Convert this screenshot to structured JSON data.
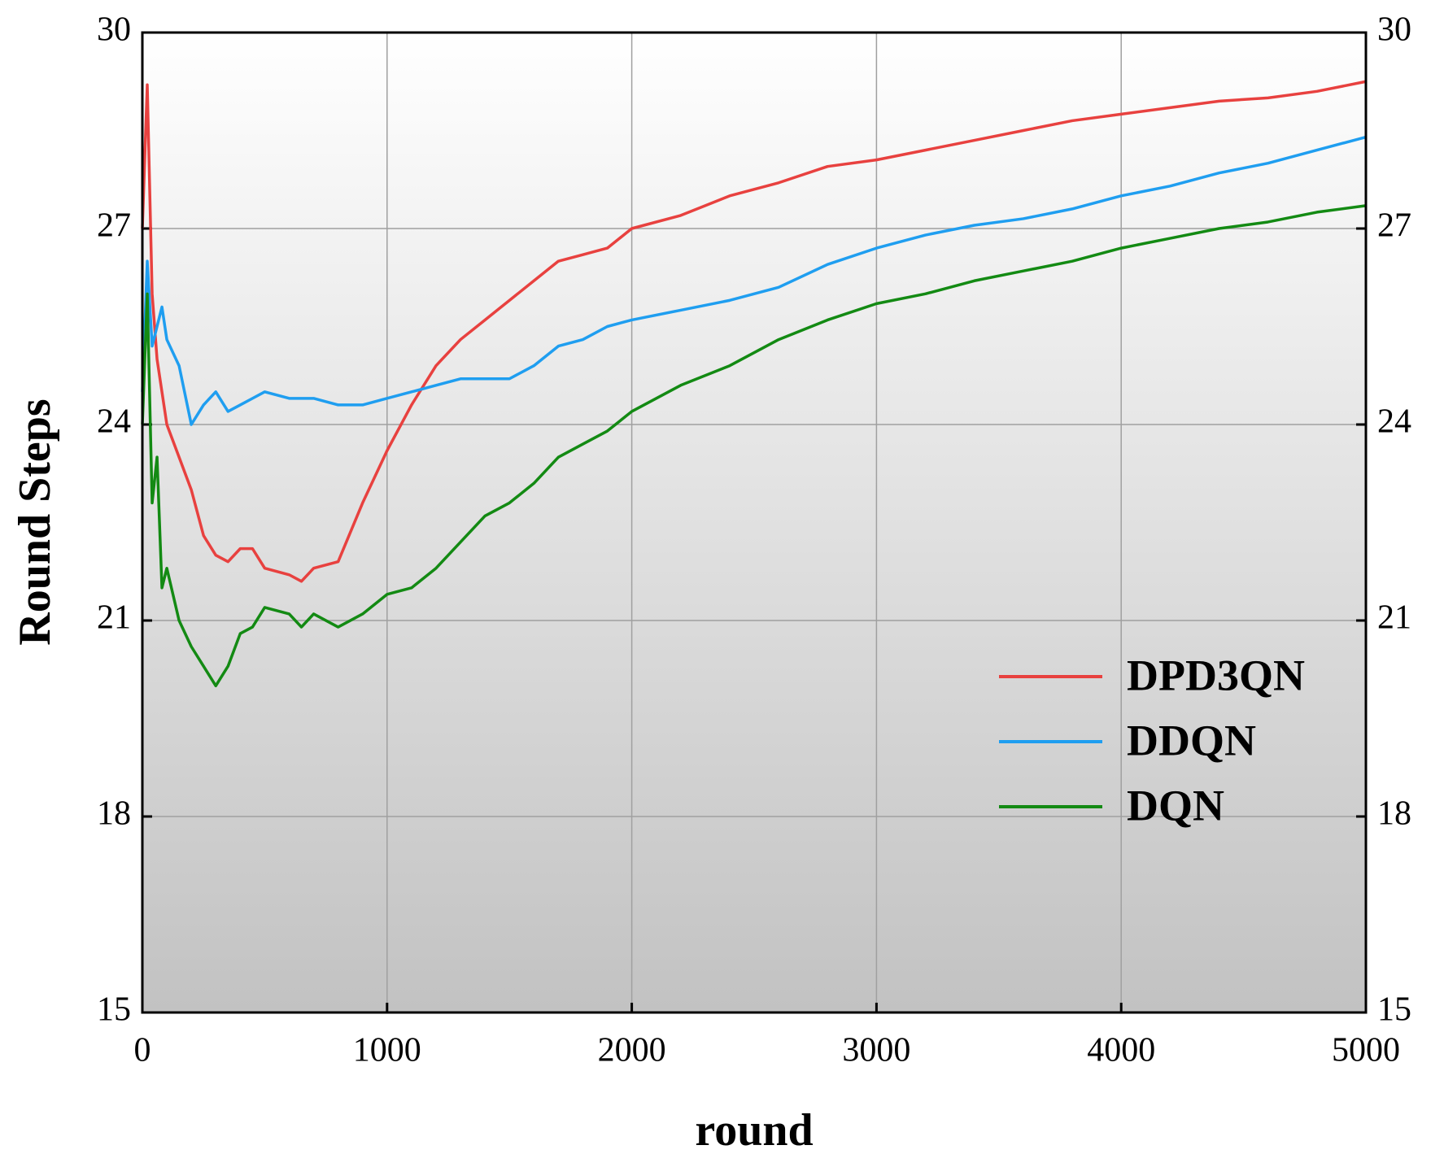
{
  "chart_data": {
    "type": "line",
    "x_label": "round",
    "y_label": "Round Steps",
    "x": [
      0,
      20,
      40,
      60,
      80,
      100,
      150,
      200,
      250,
      300,
      350,
      400,
      450,
      500,
      600,
      650,
      700,
      800,
      900,
      1000,
      1100,
      1200,
      1300,
      1400,
      1500,
      1600,
      1700,
      1800,
      1900,
      2000,
      2200,
      2400,
      2600,
      2800,
      3000,
      3200,
      3400,
      3600,
      3800,
      4000,
      4200,
      4400,
      4600,
      4800,
      5000
    ],
    "series": [
      {
        "name": "DPD3QN",
        "color": "#e8413f",
        "values": [
          27,
          29.2,
          26,
          25,
          24.5,
          24,
          23.5,
          23,
          22.3,
          22.0,
          21.9,
          22.1,
          22.1,
          21.8,
          21.7,
          21.6,
          21.8,
          21.9,
          22.8,
          23.6,
          24.3,
          24.9,
          25.3,
          25.6,
          25.9,
          26.2,
          26.5,
          26.6,
          26.7,
          27.0,
          27.2,
          27.5,
          27.7,
          27.95,
          28.05,
          28.2,
          28.35,
          28.5,
          28.65,
          28.75,
          28.85,
          28.95,
          29.0,
          29.1,
          29.25
        ]
      },
      {
        "name": "DDQN",
        "color": "#1f9ef0",
        "values": [
          24.5,
          26.5,
          25.2,
          25.5,
          25.8,
          25.3,
          24.9,
          24.0,
          24.3,
          24.5,
          24.2,
          24.3,
          24.4,
          24.5,
          24.4,
          24.4,
          24.4,
          24.3,
          24.3,
          24.4,
          24.5,
          24.6,
          24.7,
          24.7,
          24.7,
          24.9,
          25.2,
          25.3,
          25.5,
          25.6,
          25.75,
          25.9,
          26.1,
          26.45,
          26.7,
          26.9,
          27.05,
          27.15,
          27.3,
          27.5,
          27.65,
          27.85,
          28.0,
          28.2,
          28.4
        ]
      },
      {
        "name": "DQN",
        "color": "#138a13",
        "values": [
          24,
          26,
          22.8,
          23.5,
          21.5,
          21.8,
          21.0,
          20.6,
          20.3,
          20.0,
          20.3,
          20.8,
          20.9,
          21.2,
          21.1,
          20.9,
          21.1,
          20.9,
          21.1,
          21.4,
          21.5,
          21.8,
          22.2,
          22.6,
          22.8,
          23.1,
          23.5,
          23.7,
          23.9,
          24.2,
          24.6,
          24.9,
          25.3,
          25.6,
          25.85,
          26.0,
          26.2,
          26.35,
          26.5,
          26.7,
          26.85,
          27.0,
          27.1,
          27.25,
          27.35
        ]
      }
    ],
    "xlim": [
      0,
      5000
    ],
    "xticks": [
      0,
      1000,
      2000,
      3000,
      4000,
      5000
    ],
    "ylim": [
      15,
      30
    ],
    "yticks": [
      15,
      18,
      21,
      24,
      27,
      30
    ],
    "grid": true,
    "legend_position": "lower right"
  }
}
